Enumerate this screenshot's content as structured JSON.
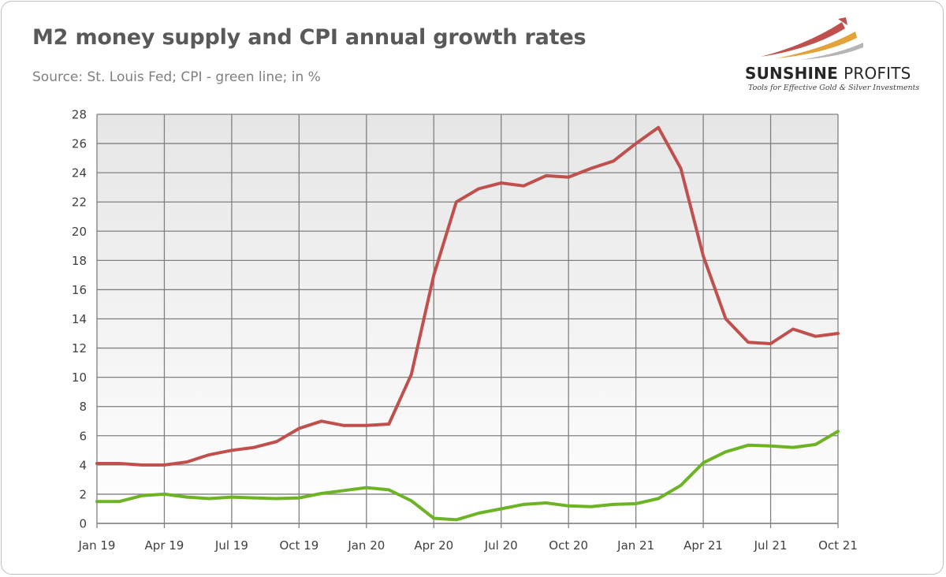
{
  "title": "M2 money supply and CPI annual growth rates",
  "subtitle": "Source: St. Louis Fed; CPI - green line; in %",
  "logo": {
    "name_bold": "SUNSHINE",
    "name_light": "PROFITS",
    "tagline": "Tools for Effective Gold & Silver Investments"
  },
  "colors": {
    "m2": "#c0504d",
    "cpi": "#6cb325",
    "grid": "#808080",
    "plot_bg_top": "#e6e6e6",
    "plot_bg_bottom": "#ffffff"
  },
  "chart_data": {
    "type": "line",
    "title": "M2 money supply and CPI annual growth rates",
    "subtitle": "Source: St. Louis Fed; CPI - green line; in %",
    "ylim": [
      0,
      28
    ],
    "yticks": [
      0,
      2,
      4,
      6,
      8,
      10,
      12,
      14,
      16,
      18,
      20,
      22,
      24,
      26,
      28
    ],
    "x_tick_labels": [
      "Jan 19",
      "Apr 19",
      "Jul 19",
      "Oct 19",
      "Jan 20",
      "Apr 20",
      "Jul 20",
      "Oct 20",
      "Jan 21",
      "Apr 21",
      "Jul 21",
      "Oct 21"
    ],
    "x": [
      "2019-01",
      "2019-02",
      "2019-03",
      "2019-04",
      "2019-05",
      "2019-06",
      "2019-07",
      "2019-08",
      "2019-09",
      "2019-10",
      "2019-11",
      "2019-12",
      "2020-01",
      "2020-02",
      "2020-03",
      "2020-04",
      "2020-05",
      "2020-06",
      "2020-07",
      "2020-08",
      "2020-09",
      "2020-10",
      "2020-11",
      "2020-12",
      "2021-01",
      "2021-02",
      "2021-03",
      "2021-04",
      "2021-05",
      "2021-06",
      "2021-07",
      "2021-08",
      "2021-09",
      "2021-10"
    ],
    "grid": true,
    "series": [
      {
        "color": "#c0504d",
        "values": [
          4.1,
          4.1,
          4.0,
          4.0,
          4.2,
          4.7,
          5.0,
          5.2,
          5.6,
          6.5,
          7.0,
          6.7,
          6.7,
          6.8,
          10.2,
          17.0,
          22.0,
          22.9,
          23.3,
          23.1,
          23.8,
          23.7,
          24.3,
          24.8,
          26.0,
          27.1,
          24.3,
          18.3,
          14.0,
          12.4,
          12.3,
          13.3,
          12.8,
          13.0
        ]
      },
      {
        "color": "#6cb325",
        "values": [
          1.5,
          1.5,
          1.9,
          2.0,
          1.8,
          1.7,
          1.8,
          1.75,
          1.7,
          1.75,
          2.05,
          2.25,
          2.45,
          2.3,
          1.55,
          0.35,
          0.25,
          0.7,
          1.0,
          1.3,
          1.4,
          1.2,
          1.15,
          1.3,
          1.35,
          1.7,
          2.6,
          4.15,
          4.9,
          5.35,
          5.3,
          5.2,
          5.4,
          6.3
        ]
      }
    ]
  }
}
